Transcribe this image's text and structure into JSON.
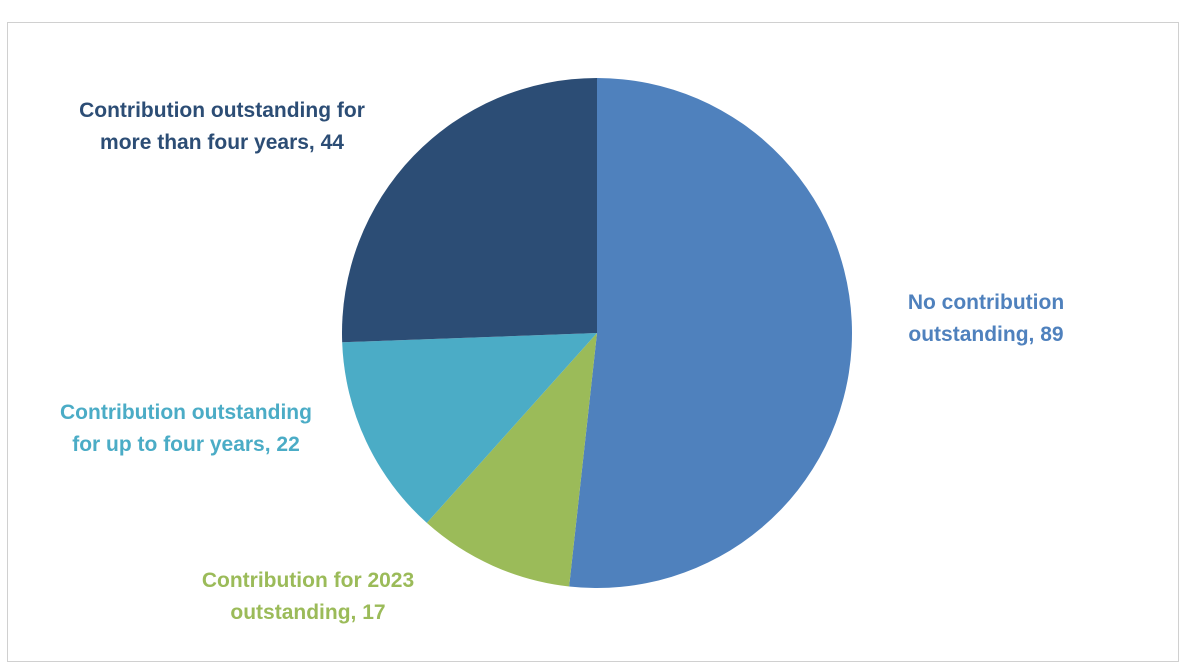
{
  "caption": "",
  "chart_data": {
    "type": "pie",
    "title": "",
    "start_angle_deg": 0,
    "direction": "clockwise",
    "legend": "none",
    "slices": [
      {
        "label": "No contribution outstanding",
        "value": 89,
        "color": "#4F81BD",
        "label_lines": [
          "No contribution",
          "outstanding, 89"
        ]
      },
      {
        "label": "Contribution for 2023 outstanding",
        "value": 17,
        "color": "#9BBB59",
        "label_lines": [
          "Contribution for 2023",
          "outstanding, 17"
        ]
      },
      {
        "label": "Contribution outstanding for up to four years",
        "value": 22,
        "color": "#4BACC6",
        "label_lines": [
          "Contribution outstanding",
          "for up to four years, 22"
        ]
      },
      {
        "label": "Contribution outstanding for more than four years",
        "value": 44,
        "color": "#2C4D75",
        "label_lines": [
          "Contribution outstanding for",
          "more than four years, 44"
        ]
      }
    ]
  }
}
